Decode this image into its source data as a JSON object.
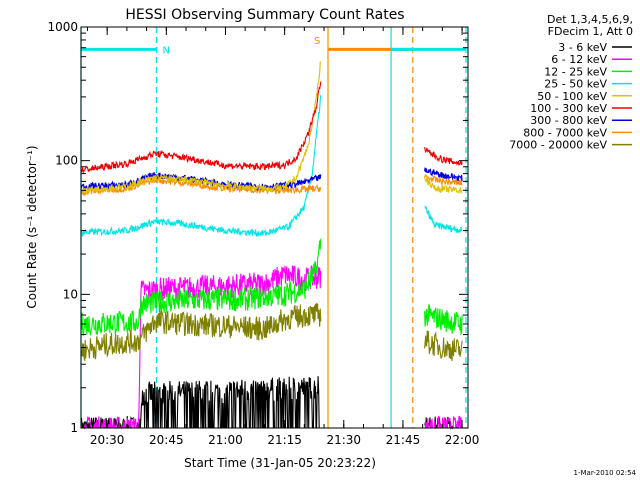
{
  "chart_data": {
    "type": "line",
    "title": "HESSI Observing Summary Count Rates",
    "xlabel": "Start Time (31-Jan-05 20:23:22)",
    "ylabel": "Count Rate (s⁻¹ detector⁻¹)",
    "yscale": "log",
    "ylim": [
      1,
      1000
    ],
    "xlim": [
      "20:23:22",
      "22:01:30"
    ],
    "x_ticks": [
      "20:30",
      "20:45",
      "21:00",
      "21:15",
      "21:30",
      "21:45",
      "22:00"
    ],
    "y_ticks": [
      "1",
      "10",
      "100",
      "1000"
    ],
    "legend_header": [
      "Det 1,3,4,5,6,9,",
      "FDecim 1, Att 0"
    ],
    "legend_position": "right, outside plot",
    "timestamp": "1-Mar-2010 02:54",
    "flags": [
      {
        "label": "N",
        "start": "20:23:22",
        "end": "20:42:30",
        "color": "#00e5e5"
      },
      {
        "label": "S",
        "start": "21:26:00",
        "end": "21:47:30",
        "color": "#ff8c00"
      },
      {
        "label": "",
        "start": "21:42:00",
        "end": "22:01:00",
        "color": "#00e5e5"
      }
    ],
    "vertical_markers": [
      {
        "time": "20:23:22",
        "color": "#00e5e5",
        "style": "solid"
      },
      {
        "time": "20:42:30",
        "color": "#00e5e5",
        "style": "dashed"
      },
      {
        "time": "21:26:00",
        "color": "#ff8c00",
        "style": "solid"
      },
      {
        "time": "21:42:00",
        "color": "#00e5e5",
        "style": "solid"
      },
      {
        "time": "21:47:30",
        "color": "#ff8c00",
        "style": "dashed"
      },
      {
        "time": "22:01:00",
        "color": "#00e5e5",
        "style": "dashed"
      }
    ],
    "segments": [
      {
        "start": "20:23:22",
        "end": "21:24:10"
      },
      {
        "start": "21:50:30",
        "end": "22:00:00"
      }
    ],
    "series": [
      {
        "name": "3 - 6 keV",
        "color": "#000000",
        "points": [
          [
            "20:23:22",
            1
          ],
          [
            "20:38:30",
            1
          ],
          [
            "20:38:40",
            1.8
          ],
          [
            "21:23:00",
            2.0
          ],
          [
            "21:24:10",
            2.2
          ],
          [
            "21:50:30",
            1
          ],
          [
            "22:00:00",
            1
          ]
        ]
      },
      {
        "name": "6 - 12 keV",
        "color": "#ff00ff",
        "points": [
          [
            "20:23:22",
            1
          ],
          [
            "20:38:00",
            1
          ],
          [
            "20:38:30",
            10.5
          ],
          [
            "20:45:00",
            11
          ],
          [
            "21:00:00",
            11.5
          ],
          [
            "21:10:00",
            12
          ],
          [
            "21:15:00",
            14
          ],
          [
            "21:20:00",
            13
          ],
          [
            "21:24:10",
            13.5
          ],
          [
            "21:50:30",
            1
          ],
          [
            "22:00:00",
            1
          ]
        ]
      },
      {
        "name": "12 - 25 keV",
        "color": "#00ee00",
        "points": [
          [
            "20:23:22",
            6
          ],
          [
            "20:38:00",
            6.2
          ],
          [
            "20:38:30",
            8.5
          ],
          [
            "20:50:00",
            9
          ],
          [
            "21:05:00",
            9.2
          ],
          [
            "21:15:00",
            10
          ],
          [
            "21:20:00",
            11
          ],
          [
            "21:23:00",
            15
          ],
          [
            "21:24:10",
            25
          ],
          [
            "21:50:30",
            7
          ],
          [
            "21:55:00",
            6.5
          ],
          [
            "22:00:00",
            6
          ]
        ]
      },
      {
        "name": "25 - 50 keV",
        "color": "#00e5e5",
        "points": [
          [
            "20:23:22",
            29
          ],
          [
            "20:35:00",
            30
          ],
          [
            "20:42:00",
            35
          ],
          [
            "20:48:00",
            34
          ],
          [
            "21:00:00",
            30
          ],
          [
            "21:10:00",
            28.5
          ],
          [
            "21:16:00",
            32
          ],
          [
            "21:20:00",
            45
          ],
          [
            "21:22:00",
            80
          ],
          [
            "21:23:00",
            150
          ],
          [
            "21:24:10",
            300
          ],
          [
            "21:50:30",
            45
          ],
          [
            "21:53:00",
            33
          ],
          [
            "22:00:00",
            30
          ]
        ]
      },
      {
        "name": "50 - 100 keV",
        "color": "#e0c000",
        "points": [
          [
            "20:23:22",
            60
          ],
          [
            "20:35:00",
            64
          ],
          [
            "20:42:00",
            75
          ],
          [
            "20:50:00",
            72
          ],
          [
            "21:00:00",
            65
          ],
          [
            "21:10:00",
            62
          ],
          [
            "21:15:00",
            63
          ],
          [
            "21:18:00",
            75
          ],
          [
            "21:21:00",
            130
          ],
          [
            "21:23:00",
            280
          ],
          [
            "21:24:10",
            560
          ],
          [
            "21:50:30",
            75
          ],
          [
            "21:53:00",
            62
          ],
          [
            "22:00:00",
            60
          ]
        ]
      },
      {
        "name": "100 - 300 keV",
        "color": "#ee0000",
        "points": [
          [
            "20:23:22",
            85
          ],
          [
            "20:35:00",
            95
          ],
          [
            "20:42:00",
            113
          ],
          [
            "20:50:00",
            105
          ],
          [
            "21:00:00",
            92
          ],
          [
            "21:10:00",
            90
          ],
          [
            "21:15:00",
            93
          ],
          [
            "21:18:00",
            105
          ],
          [
            "21:21:00",
            160
          ],
          [
            "21:23:00",
            250
          ],
          [
            "21:24:10",
            400
          ],
          [
            "21:50:30",
            120
          ],
          [
            "21:55:00",
            102
          ],
          [
            "22:00:00",
            95
          ]
        ]
      },
      {
        "name": "300 - 800 keV",
        "color": "#0000dd",
        "points": [
          [
            "20:23:22",
            64
          ],
          [
            "20:35:00",
            66
          ],
          [
            "20:42:00",
            78
          ],
          [
            "20:50:00",
            74
          ],
          [
            "21:00:00",
            66
          ],
          [
            "21:10:00",
            64
          ],
          [
            "21:15:00",
            65
          ],
          [
            "21:18:00",
            67
          ],
          [
            "21:22:00",
            72
          ],
          [
            "21:24:10",
            75
          ],
          [
            "21:50:30",
            85
          ],
          [
            "21:55:00",
            78
          ],
          [
            "22:00:00",
            74
          ]
        ]
      },
      {
        "name": "800 - 7000 keV",
        "color": "#ff8c00",
        "points": [
          [
            "20:23:22",
            58
          ],
          [
            "20:35:00",
            62
          ],
          [
            "20:42:00",
            72
          ],
          [
            "20:50:00",
            68
          ],
          [
            "21:00:00",
            62
          ],
          [
            "21:10:00",
            60
          ],
          [
            "21:15:00",
            60
          ],
          [
            "21:20:00",
            61
          ],
          [
            "21:24:10",
            62
          ],
          [
            "21:50:30",
            75
          ],
          [
            "21:55:00",
            70
          ],
          [
            "22:00:00",
            68
          ]
        ]
      },
      {
        "name": "7000 - 20000 keV",
        "color": "#808000",
        "points": [
          [
            "20:23:22",
            3.8
          ],
          [
            "20:30:00",
            4.2
          ],
          [
            "20:38:00",
            4.5
          ],
          [
            "20:42:00",
            6.3
          ],
          [
            "20:50:00",
            6
          ],
          [
            "21:00:00",
            5.8
          ],
          [
            "21:10:00",
            5.5
          ],
          [
            "21:15:00",
            6.5
          ],
          [
            "21:20:00",
            7
          ],
          [
            "21:24:10",
            7
          ],
          [
            "21:50:30",
            4.5
          ],
          [
            "21:55:00",
            4
          ],
          [
            "22:00:00",
            3.8
          ]
        ]
      }
    ]
  }
}
